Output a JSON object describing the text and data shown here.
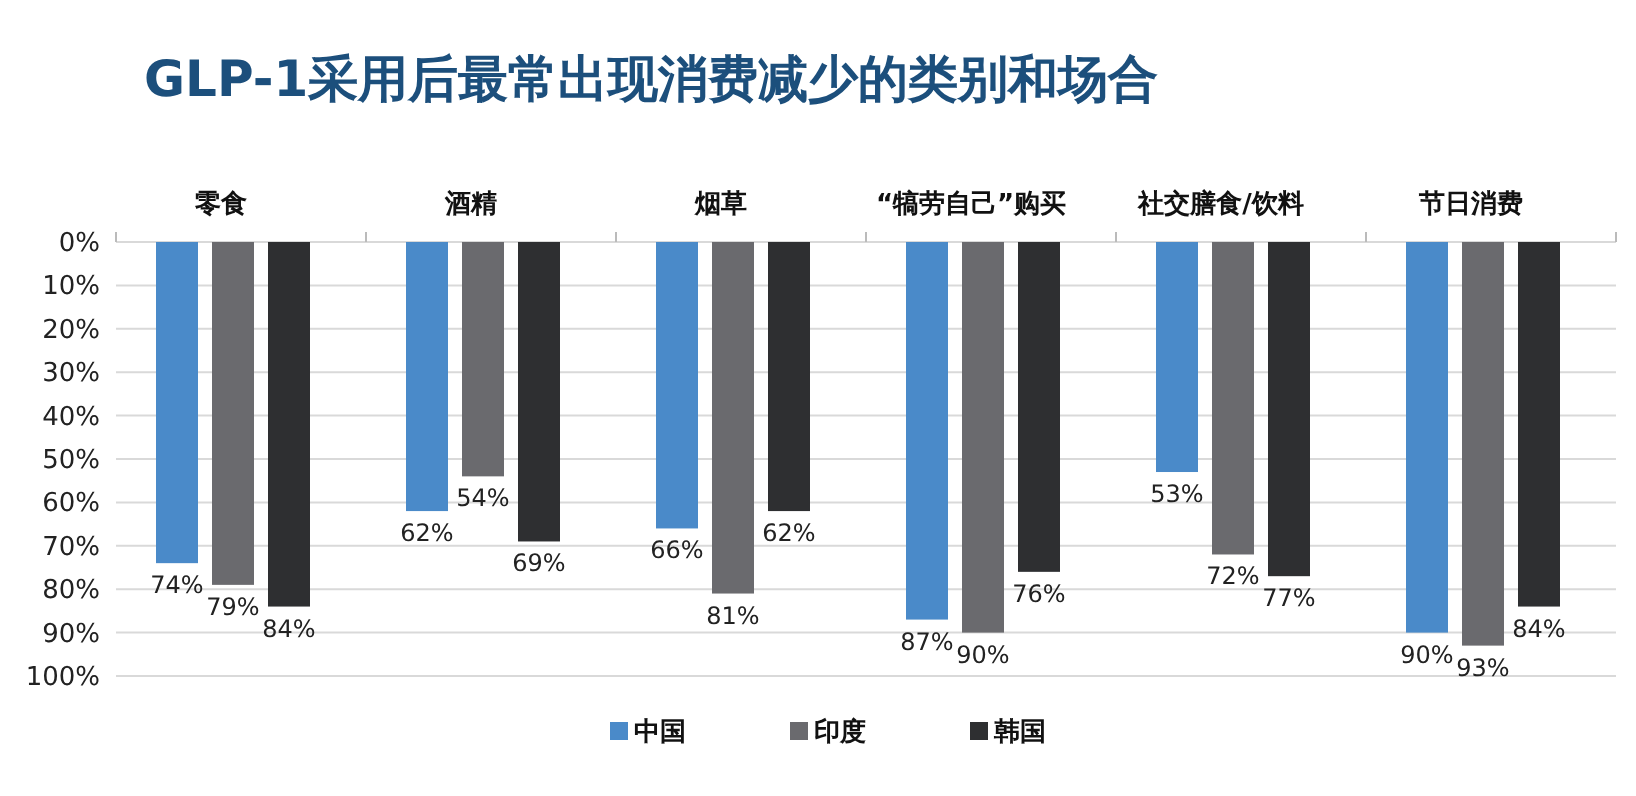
{
  "chart_data": {
    "type": "bar",
    "title": "GLP-1采用后最常出现消费减少的类别和场合",
    "categories": [
      "零食",
      "酒精",
      "烟草",
      "“犒劳自己”购买",
      "社交膳食/饮料",
      "节日消费"
    ],
    "series": [
      {
        "name": "中国",
        "color": "#4a8ac9",
        "values": [
          74,
          62,
          66,
          87,
          53,
          90
        ]
      },
      {
        "name": "印度",
        "color": "#6a6a6e",
        "values": [
          79,
          54,
          81,
          90,
          72,
          93
        ]
      },
      {
        "name": "韩国",
        "color": "#2e2f31",
        "values": [
          84,
          69,
          62,
          76,
          77,
          84
        ]
      }
    ],
    "ylim": [
      100,
      0
    ],
    "yticks": [
      {
        "value": 0,
        "label": "0%"
      },
      {
        "value": 10,
        "label": "10%"
      },
      {
        "value": 20,
        "label": "20%"
      },
      {
        "value": 30,
        "label": "30%"
      },
      {
        "value": 40,
        "label": "40%"
      },
      {
        "value": 50,
        "label": "50%"
      },
      {
        "value": 60,
        "label": "60%"
      },
      {
        "value": 70,
        "label": "70%"
      },
      {
        "value": 80,
        "label": "80%"
      },
      {
        "value": 90,
        "label": "90%"
      },
      {
        "value": 100,
        "label": "100%"
      }
    ],
    "value_labels": [
      [
        "74%",
        "62%",
        "66%",
        "87%",
        "53%",
        "90%"
      ],
      [
        "79%",
        "54%",
        "81%",
        "90%",
        "72%",
        "93%"
      ],
      [
        "84%",
        "69%",
        "62%",
        "76%",
        "77%",
        "84%"
      ]
    ],
    "grid": "y",
    "legend": "bottom"
  }
}
